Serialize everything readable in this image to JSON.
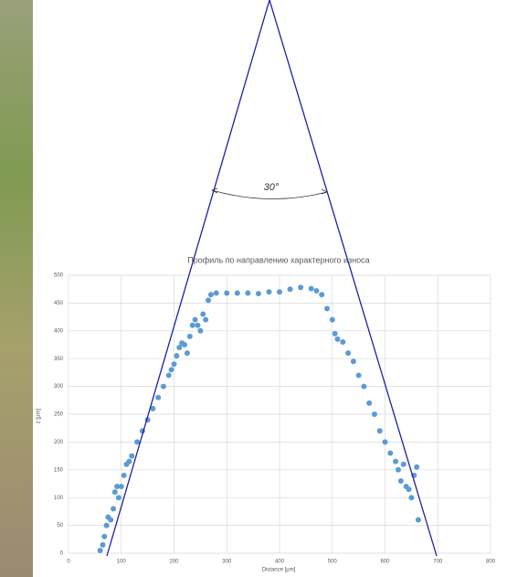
{
  "chart_data": {
    "type": "scatter",
    "title": "Профиль по направлению характерного износа",
    "x_label": "Distance [µm]",
    "y_label": "z [µm]",
    "annotation": "30°",
    "color": "#5b9bd5",
    "grid": true,
    "xlim": [
      0,
      800
    ],
    "xticks": [
      0,
      100,
      200,
      300,
      400,
      500,
      600,
      700,
      800
    ],
    "ylim": [
      0,
      500
    ],
    "yticks": [
      0,
      50,
      100,
      150,
      200,
      250,
      300,
      350,
      400,
      450,
      500
    ],
    "x": [
      60,
      65,
      68,
      72,
      75,
      80,
      85,
      88,
      92,
      95,
      100,
      105,
      110,
      115,
      120,
      130,
      140,
      150,
      160,
      170,
      180,
      190,
      195,
      200,
      205,
      210,
      215,
      220,
      225,
      230,
      235,
      240,
      245,
      250,
      255,
      260,
      265,
      270,
      280,
      300,
      320,
      340,
      360,
      380,
      400,
      420,
      440,
      460,
      470,
      480,
      490,
      500,
      505,
      510,
      520,
      530,
      540,
      550,
      560,
      570,
      580,
      590,
      600,
      610,
      620,
      625,
      630,
      635,
      640,
      645,
      650,
      655,
      660,
      663
    ],
    "values": [
      5,
      15,
      30,
      50,
      65,
      60,
      80,
      110,
      120,
      100,
      120,
      140,
      160,
      165,
      175,
      200,
      220,
      240,
      260,
      280,
      300,
      320,
      330,
      340,
      355,
      370,
      378,
      375,
      360,
      390,
      410,
      420,
      410,
      400,
      430,
      420,
      455,
      465,
      468,
      468,
      468,
      468,
      467,
      470,
      470,
      475,
      478,
      476,
      472,
      465,
      440,
      420,
      395,
      385,
      380,
      360,
      345,
      320,
      300,
      270,
      250,
      220,
      200,
      180,
      165,
      150,
      130,
      160,
      120,
      115,
      100,
      140,
      155,
      60
    ]
  }
}
